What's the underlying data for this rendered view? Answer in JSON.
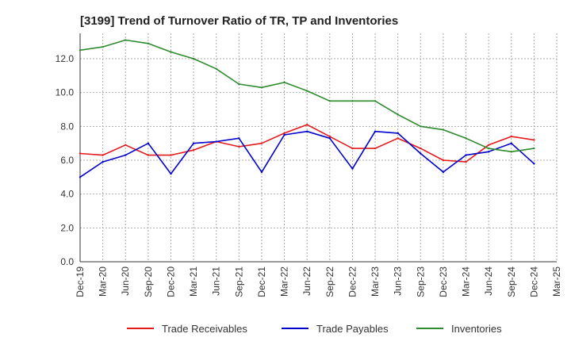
{
  "chart_data": {
    "type": "line",
    "title": "[3199]  Trend of Turnover Ratio of TR, TP and Inventories",
    "xlabel": "",
    "ylabel": "",
    "ylim": [
      0,
      13.5
    ],
    "yticks": [
      "0.0",
      "2.0",
      "4.0",
      "6.0",
      "8.0",
      "10.0",
      "12.0"
    ],
    "xticks": [
      "Dec-19",
      "Mar-20",
      "Jun-20",
      "Sep-20",
      "Dec-20",
      "Mar-21",
      "Jun-21",
      "Sep-21",
      "Dec-21",
      "Mar-22",
      "Jun-22",
      "Sep-22",
      "Dec-22",
      "Mar-23",
      "Jun-23",
      "Sep-23",
      "Dec-23",
      "Mar-24",
      "Jun-24",
      "Sep-24",
      "Dec-24",
      "Mar-25"
    ],
    "x": [
      "Dec-19",
      "Mar-20",
      "Jun-20",
      "Sep-20",
      "Dec-20",
      "Mar-21",
      "Jun-21",
      "Sep-21",
      "Dec-21",
      "Mar-22",
      "Jun-22",
      "Sep-22",
      "Dec-22",
      "Mar-23",
      "Jun-23",
      "Sep-23",
      "Dec-23",
      "Mar-24",
      "Jun-24",
      "Sep-24",
      "Dec-24"
    ],
    "grid": true,
    "legend_position": "bottom",
    "series": [
      {
        "name": "Trade Receivables",
        "color": "#e41a1c",
        "values": [
          6.4,
          6.3,
          6.9,
          6.3,
          6.3,
          6.6,
          7.1,
          6.8,
          7.0,
          7.6,
          8.1,
          7.4,
          6.7,
          6.7,
          7.3,
          6.7,
          6.0,
          5.9,
          6.9,
          7.4,
          7.2
        ]
      },
      {
        "name": "Trade Payables",
        "color": "#0000cc",
        "values": [
          5.0,
          5.9,
          6.3,
          7.0,
          5.2,
          7.0,
          7.1,
          7.3,
          5.3,
          7.5,
          7.7,
          7.3,
          5.5,
          7.7,
          7.6,
          6.4,
          5.3,
          6.3,
          6.5,
          7.0,
          5.8
        ]
      },
      {
        "name": "Inventories",
        "color": "#2e8b2e",
        "values": [
          12.5,
          12.7,
          13.1,
          12.9,
          12.4,
          12.0,
          11.4,
          10.5,
          10.3,
          10.6,
          10.1,
          9.5,
          9.5,
          9.5,
          8.7,
          8.0,
          7.8,
          7.3,
          6.7,
          6.5,
          6.7
        ]
      }
    ]
  }
}
